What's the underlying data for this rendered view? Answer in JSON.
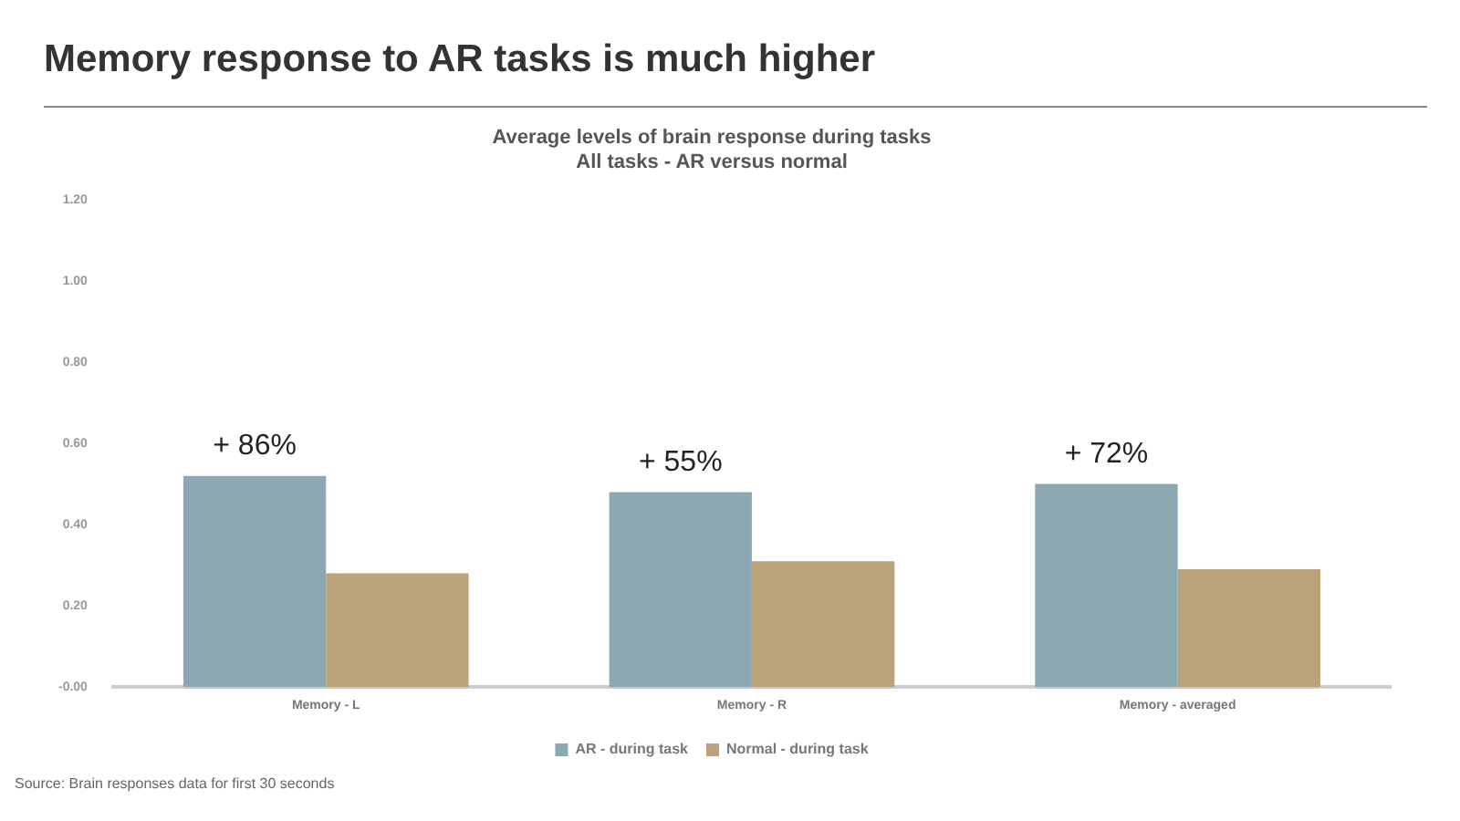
{
  "chart_data": {
    "type": "bar",
    "title": "Memory response to AR tasks is much higher",
    "subtitle": "Average levels of brain response during tasks\nAll tasks - AR versus normal",
    "categories": [
      "Memory - L",
      "Memory - R",
      "Memory - averaged"
    ],
    "series": [
      {
        "name": "AR - during task",
        "color": "#8ca9b3",
        "values": [
          0.52,
          0.48,
          0.5
        ]
      },
      {
        "name": "Normal - during task",
        "color": "#bca27a",
        "values": [
          0.28,
          0.31,
          0.29
        ]
      }
    ],
    "ylim": [
      0,
      1.2
    ],
    "yticks": [
      {
        "value": 0,
        "label": "-0.00"
      },
      {
        "value": 0.2,
        "label": "0.20"
      },
      {
        "value": 0.4,
        "label": "0.40"
      },
      {
        "value": 0.6,
        "label": "0.60"
      },
      {
        "value": 0.8,
        "label": "0.80"
      },
      {
        "value": 1.0,
        "label": "1.00"
      },
      {
        "value": 1.2,
        "label": "1.20"
      }
    ],
    "grid": false,
    "legend": "bottom",
    "annotations": [
      {
        "text": "+ 86%",
        "x": "Memory - L",
        "y": 0.52
      },
      {
        "text": "+ 55%",
        "x": "Memory - R",
        "y": 0.48
      },
      {
        "text": "+ 72%",
        "x": "Memory - averaged",
        "y": 0.5
      },
      "Source: Brain responses data for first 30 seconds"
    ]
  }
}
